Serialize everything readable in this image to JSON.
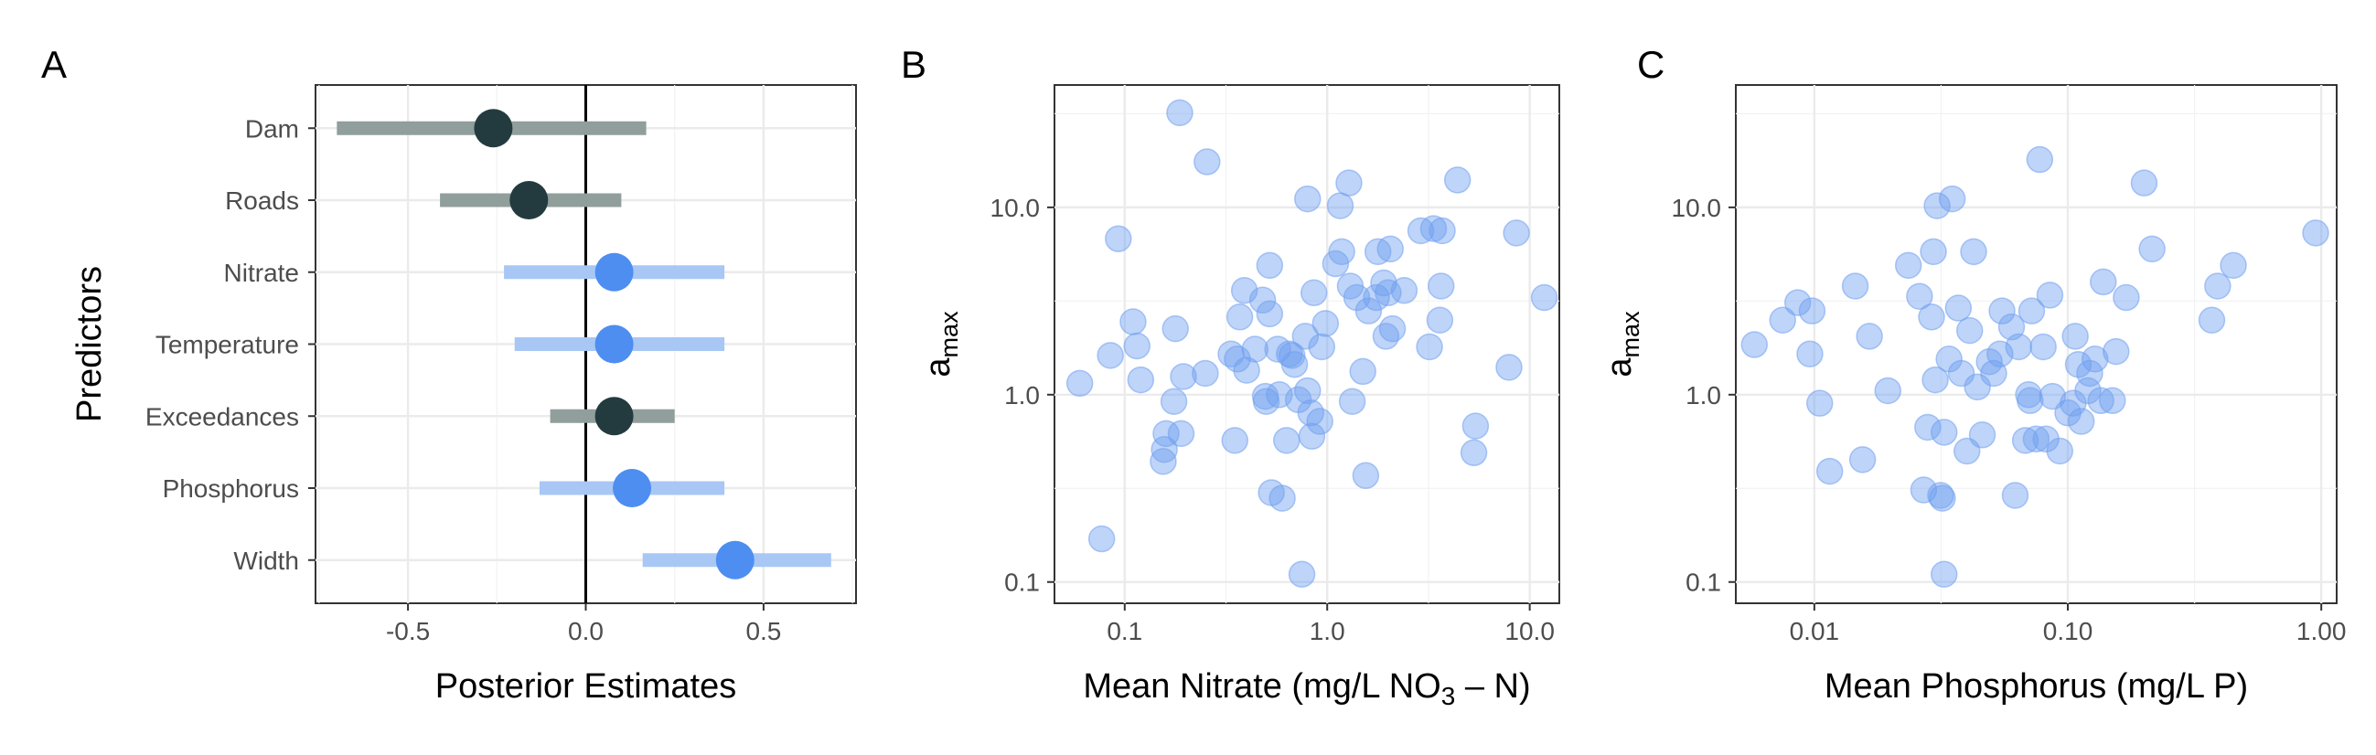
{
  "chart_data": [
    {
      "panel": "A",
      "type": "interval",
      "xlabel": "Posterior Estimates",
      "ylabel": "Predictors",
      "xlim": [
        -0.76,
        0.76
      ],
      "xticks": [
        {
          "v": -0.5,
          "t": "-0.5"
        },
        {
          "v": 0.0,
          "t": "0.0"
        },
        {
          "v": 0.5,
          "t": "0.5"
        }
      ],
      "reference_line": 0,
      "colors": {
        "includes_zero": "#909e9c",
        "includes_zero_point": "#233b3e",
        "excludes_zero": "#a8c7f4",
        "excludes_zero_point": "#4d8ef0"
      },
      "rows": [
        {
          "label": "Dam",
          "estimate": -0.26,
          "lower": -0.7,
          "upper": 0.17,
          "style": "dark"
        },
        {
          "label": "Roads",
          "estimate": -0.16,
          "lower": -0.41,
          "upper": 0.1,
          "style": "dark"
        },
        {
          "label": "Nitrate",
          "estimate": 0.08,
          "lower": -0.23,
          "upper": 0.39,
          "style": "blue"
        },
        {
          "label": "Temperature",
          "estimate": 0.08,
          "lower": -0.2,
          "upper": 0.39,
          "style": "blue"
        },
        {
          "label": "Exceedances",
          "estimate": 0.08,
          "lower": -0.1,
          "upper": 0.25,
          "style": "dark"
        },
        {
          "label": "Phosphorus",
          "estimate": 0.13,
          "lower": -0.13,
          "upper": 0.39,
          "style": "blue"
        },
        {
          "label": "Width",
          "estimate": 0.42,
          "lower": 0.16,
          "upper": 0.69,
          "style": "blue"
        }
      ]
    },
    {
      "panel": "B",
      "type": "scatter",
      "xscale": "log10",
      "yscale": "log10",
      "xlabel": "Mean Nitrate (mg/L NO3 – N)",
      "xlabel_parts": {
        "prefix": "Mean Nitrate (mg/L NO",
        "sub": "3",
        "suffix": " – N)"
      },
      "ylabel": "a_max",
      "ylabel_parts": {
        "main": "a",
        "sub": "max"
      },
      "xlim": [
        0.045,
        14
      ],
      "ylim": [
        0.077,
        45
      ],
      "xticks": [
        {
          "v": 0.1,
          "t": "0.1"
        },
        {
          "v": 1,
          "t": "1.0"
        },
        {
          "v": 10,
          "t": "10.0"
        }
      ],
      "yticks": [
        {
          "v": 0.1,
          "t": "0.1"
        },
        {
          "v": 1,
          "t": "1.0"
        },
        {
          "v": 10,
          "t": "10.0"
        }
      ],
      "point_color": "#6f9ff0",
      "points": [
        [
          0.06,
          1.15
        ],
        [
          0.077,
          0.17
        ],
        [
          0.085,
          1.62
        ],
        [
          0.093,
          6.8
        ],
        [
          0.11,
          2.45
        ],
        [
          0.115,
          1.82
        ],
        [
          0.12,
          1.2
        ],
        [
          0.155,
          0.44
        ],
        [
          0.157,
          0.51
        ],
        [
          0.16,
          0.62
        ],
        [
          0.175,
          0.92
        ],
        [
          0.178,
          2.25
        ],
        [
          0.187,
          32
        ],
        [
          0.19,
          0.62
        ],
        [
          0.195,
          1.25
        ],
        [
          0.25,
          1.3
        ],
        [
          0.255,
          17.5
        ],
        [
          0.335,
          1.65
        ],
        [
          0.35,
          0.57
        ],
        [
          0.36,
          1.55
        ],
        [
          0.37,
          2.6
        ],
        [
          0.39,
          3.6
        ],
        [
          0.4,
          1.35
        ],
        [
          0.44,
          1.75
        ],
        [
          0.48,
          3.2
        ],
        [
          0.495,
          0.98
        ],
        [
          0.5,
          0.92
        ],
        [
          0.52,
          2.7
        ],
        [
          0.52,
          4.9
        ],
        [
          0.53,
          0.3
        ],
        [
          0.57,
          1.75
        ],
        [
          0.58,
          1.0
        ],
        [
          0.6,
          0.28
        ],
        [
          0.63,
          0.57
        ],
        [
          0.65,
          1.65
        ],
        [
          0.67,
          1.62
        ],
        [
          0.69,
          1.45
        ],
        [
          0.72,
          0.94
        ],
        [
          0.75,
          0.11
        ],
        [
          0.78,
          2.05
        ],
        [
          0.8,
          11.1
        ],
        [
          0.8,
          1.05
        ],
        [
          0.83,
          0.8
        ],
        [
          0.84,
          0.6
        ],
        [
          0.86,
          3.5
        ],
        [
          0.92,
          0.72
        ],
        [
          0.94,
          1.8
        ],
        [
          0.98,
          2.4
        ],
        [
          1.1,
          5.0
        ],
        [
          1.16,
          10.2
        ],
        [
          1.18,
          5.8
        ],
        [
          1.28,
          13.5
        ],
        [
          1.3,
          3.8
        ],
        [
          1.33,
          0.92
        ],
        [
          1.4,
          3.3
        ],
        [
          1.5,
          1.33
        ],
        [
          1.55,
          0.37
        ],
        [
          1.6,
          2.8
        ],
        [
          1.75,
          3.3
        ],
        [
          1.78,
          5.8
        ],
        [
          1.9,
          3.95
        ],
        [
          1.95,
          2.05
        ],
        [
          2.0,
          3.5
        ],
        [
          2.05,
          6.0
        ],
        [
          2.1,
          2.25
        ],
        [
          2.4,
          3.6
        ],
        [
          2.9,
          7.5
        ],
        [
          3.2,
          1.8
        ],
        [
          3.35,
          7.7
        ],
        [
          3.6,
          2.5
        ],
        [
          3.65,
          3.8
        ],
        [
          3.7,
          7.5
        ],
        [
          4.4,
          14.0
        ],
        [
          5.3,
          0.49
        ],
        [
          5.4,
          0.68
        ],
        [
          7.9,
          1.4
        ],
        [
          8.6,
          7.3
        ],
        [
          11.8,
          3.3
        ]
      ]
    },
    {
      "panel": "C",
      "type": "scatter",
      "xscale": "log10",
      "yscale": "log10",
      "xlabel": "Mean Phosphorus (mg/L P)",
      "xlabel_parts": {
        "prefix": "Mean Phosphorus (mg/L P)",
        "sub": "",
        "suffix": ""
      },
      "ylabel": "a_max",
      "ylabel_parts": {
        "main": "a",
        "sub": "max"
      },
      "xlim": [
        0.0049,
        1.15
      ],
      "ylim": [
        0.077,
        45
      ],
      "xticks": [
        {
          "v": 0.01,
          "t": "0.01"
        },
        {
          "v": 0.1,
          "t": "0.10"
        },
        {
          "v": 1,
          "t": "1.00"
        }
      ],
      "yticks": [
        {
          "v": 0.1,
          "t": "0.1"
        },
        {
          "v": 1,
          "t": "1.0"
        },
        {
          "v": 10,
          "t": "10.0"
        }
      ],
      "point_color": "#6f9ff0",
      "points": [
        [
          0.0058,
          1.85
        ],
        [
          0.0075,
          2.5
        ],
        [
          0.0086,
          3.1
        ],
        [
          0.0096,
          1.65
        ],
        [
          0.0098,
          2.8
        ],
        [
          0.0105,
          0.9
        ],
        [
          0.0115,
          0.39
        ],
        [
          0.0145,
          3.8
        ],
        [
          0.0155,
          0.45
        ],
        [
          0.0165,
          2.05
        ],
        [
          0.0195,
          1.05
        ],
        [
          0.0235,
          4.9
        ],
        [
          0.026,
          3.35
        ],
        [
          0.027,
          0.31
        ],
        [
          0.028,
          0.67
        ],
        [
          0.029,
          2.6
        ],
        [
          0.0295,
          5.8
        ],
        [
          0.03,
          1.2
        ],
        [
          0.0305,
          10.2
        ],
        [
          0.0315,
          0.29
        ],
        [
          0.032,
          0.28
        ],
        [
          0.0325,
          0.63
        ],
        [
          0.0325,
          0.11
        ],
        [
          0.034,
          1.55
        ],
        [
          0.035,
          11.1
        ],
        [
          0.037,
          2.9
        ],
        [
          0.038,
          1.3
        ],
        [
          0.04,
          0.5
        ],
        [
          0.041,
          2.2
        ],
        [
          0.0425,
          5.8
        ],
        [
          0.044,
          1.1
        ],
        [
          0.046,
          0.61
        ],
        [
          0.049,
          1.5
        ],
        [
          0.051,
          1.3
        ],
        [
          0.054,
          1.65
        ],
        [
          0.055,
          2.8
        ],
        [
          0.06,
          2.3
        ],
        [
          0.062,
          0.29
        ],
        [
          0.064,
          1.8
        ],
        [
          0.068,
          0.57
        ],
        [
          0.07,
          1.0
        ],
        [
          0.071,
          0.93
        ],
        [
          0.072,
          2.8
        ],
        [
          0.075,
          0.58
        ],
        [
          0.0775,
          18.0
        ],
        [
          0.08,
          1.8
        ],
        [
          0.082,
          0.58
        ],
        [
          0.085,
          3.4
        ],
        [
          0.087,
          0.98
        ],
        [
          0.093,
          0.5
        ],
        [
          0.1,
          0.8
        ],
        [
          0.105,
          0.9
        ],
        [
          0.107,
          2.05
        ],
        [
          0.11,
          1.45
        ],
        [
          0.113,
          0.72
        ],
        [
          0.12,
          1.05
        ],
        [
          0.122,
          1.3
        ],
        [
          0.128,
          1.55
        ],
        [
          0.135,
          0.93
        ],
        [
          0.138,
          4.0
        ],
        [
          0.15,
          0.93
        ],
        [
          0.155,
          1.7
        ],
        [
          0.17,
          3.3
        ],
        [
          0.2,
          13.5
        ],
        [
          0.215,
          6.0
        ],
        [
          0.37,
          2.5
        ],
        [
          0.39,
          3.8
        ],
        [
          0.45,
          4.9
        ],
        [
          0.95,
          7.3
        ]
      ]
    }
  ]
}
